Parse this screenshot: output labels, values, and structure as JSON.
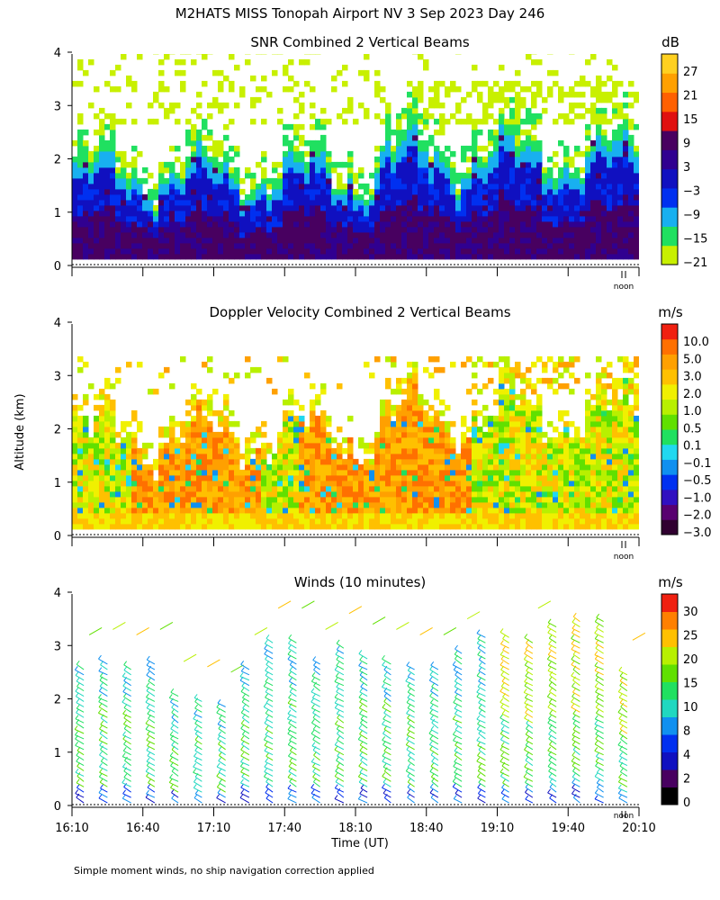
{
  "page": {
    "title": "M2HATS MISS Tonopah Airport NV   3 Sep 2023 Day 246",
    "footnote": "Simple moment winds, no ship navigation correction applied",
    "shared_ylabel": "Altitude (km)",
    "shared_xlabel": "Time (UT)",
    "noon_label": "noon"
  },
  "chart_data": [
    {
      "type": "heatmap",
      "title": "SNR Combined 2 Vertical Beams",
      "ylabel": "Altitude (km)",
      "yticks": [
        "0",
        "1",
        "2",
        "3",
        "4"
      ],
      "ylim": [
        0,
        4
      ],
      "xlim": [
        "16:10",
        "20:10"
      ],
      "colorbar_unit": "dB",
      "colorbar_ticks": [
        "27",
        "21",
        "15",
        "9",
        "3",
        "−3",
        "−9",
        "−15",
        "−21"
      ],
      "colorbar_colors": [
        "#c8f000",
        "#20e060",
        "#18b0f0",
        "#0030f0",
        "#1010c0",
        "#300090",
        "#480060",
        "#e01010",
        "#ff6000",
        "#ffa000",
        "#ffd020"
      ],
      "noon_marker": "noon"
    },
    {
      "type": "heatmap",
      "title": "Doppler Velocity Combined 2 Vertical Beams",
      "ylabel": "Altitude (km)",
      "yticks": [
        "0",
        "1",
        "2",
        "3",
        "4"
      ],
      "ylim": [
        0,
        4
      ],
      "xlim": [
        "16:10",
        "20:10"
      ],
      "colorbar_unit": "m/s",
      "colorbar_ticks": [
        "10.0",
        "5.0",
        "3.0",
        "2.0",
        "1.0",
        "0.5",
        "0.1",
        "−0.1",
        "−0.5",
        "−1.0",
        "−2.0",
        "−3.0"
      ],
      "colorbar_colors": [
        "#300030",
        "#580070",
        "#3010c0",
        "#0030f0",
        "#1090f0",
        "#20d8f0",
        "#20e060",
        "#60e000",
        "#b8f000",
        "#f0f000",
        "#ffc000",
        "#ffa000",
        "#ff7000",
        "#f02010"
      ],
      "noon_marker": "noon"
    },
    {
      "type": "scatter",
      "title": "Winds (10 minutes)",
      "ylabel": "Altitude (km)",
      "xlabel": "Time (UT)",
      "yticks": [
        "0",
        "1",
        "2",
        "3",
        "4"
      ],
      "xticks": [
        "16:10",
        "16:40",
        "17:10",
        "17:40",
        "18:10",
        "18:40",
        "19:10",
        "19:40",
        "20:10"
      ],
      "ylim": [
        0,
        4
      ],
      "xlim": [
        "16:10",
        "20:10"
      ],
      "colorbar_unit": "m/s",
      "colorbar_ticks": [
        "30",
        "25",
        "20",
        "15",
        "10",
        "8",
        "4",
        "2",
        "0"
      ],
      "colorbar_colors": [
        "#000000",
        "#480060",
        "#1010c0",
        "#0030f0",
        "#1090f0",
        "#20d8c0",
        "#20e060",
        "#60e000",
        "#b8f000",
        "#ffc000",
        "#ff8000",
        "#f02010"
      ],
      "profile_times": [
        "16:15",
        "16:25",
        "16:35",
        "16:45",
        "16:55",
        "17:05",
        "17:15",
        "17:25",
        "17:35",
        "17:45",
        "17:55",
        "18:05",
        "18:15",
        "18:25",
        "18:35",
        "18:45",
        "18:55",
        "19:05",
        "19:15",
        "19:25",
        "19:35",
        "19:45",
        "19:55",
        "20:05"
      ],
      "profile_tops_km": [
        2.6,
        2.7,
        2.6,
        2.7,
        2.1,
        2.0,
        1.9,
        2.6,
        3.1,
        3.1,
        2.7,
        3.0,
        2.8,
        2.7,
        2.6,
        2.6,
        2.9,
        3.2,
        3.2,
        3.1,
        3.4,
        3.5,
        3.5,
        2.5
      ],
      "noon_marker": "noon"
    }
  ]
}
